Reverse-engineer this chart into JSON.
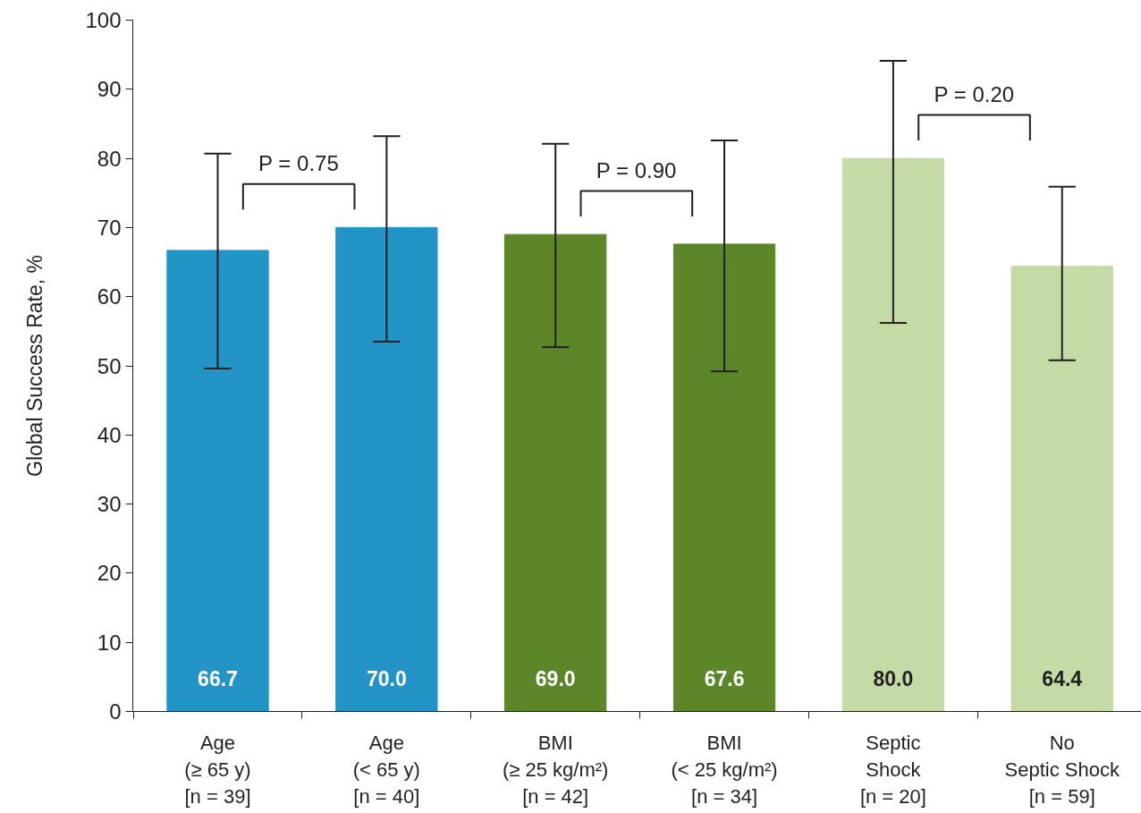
{
  "chart_data": {
    "type": "bar",
    "ylabel": "Global Success Rate, %",
    "categories": [
      "Age\n(≥ 65 y)\n[n = 39]",
      "Age\n(< 65 y)\n[n = 40]",
      "BMI\n(≥ 25 kg/m²)\n[n = 42]",
      "BMI\n(< 25 kg/m²)\n[n = 34]",
      "Septic\nShock\n[n = 20]",
      "No\nSeptic Shock\n[n = 59]"
    ],
    "values": [
      66.7,
      70.0,
      69.0,
      67.6,
      80.0,
      64.4
    ],
    "colors": [
      "#2394c6",
      "#2394c6",
      "#5c8627",
      "#5c8627",
      "#c5dba6",
      "#c5dba6"
    ],
    "errors": [
      [
        49.6,
        80.7
      ],
      [
        53.5,
        83.2
      ],
      [
        52.7,
        82.1
      ],
      [
        49.2,
        82.6
      ],
      [
        56.2,
        94.1
      ],
      [
        50.8,
        75.9
      ]
    ],
    "value_labels": [
      "66.7",
      "70.0",
      "69.0",
      "67.6",
      "80.0",
      "64.4"
    ],
    "annotations": [
      "P = 0.75",
      "P = 0.90",
      "P = 0.20"
    ],
    "ylim": [
      0,
      100
    ],
    "yticks": [
      0,
      10,
      20,
      30,
      40,
      50,
      60,
      70,
      80,
      90,
      100
    ],
    "grid": false
  }
}
